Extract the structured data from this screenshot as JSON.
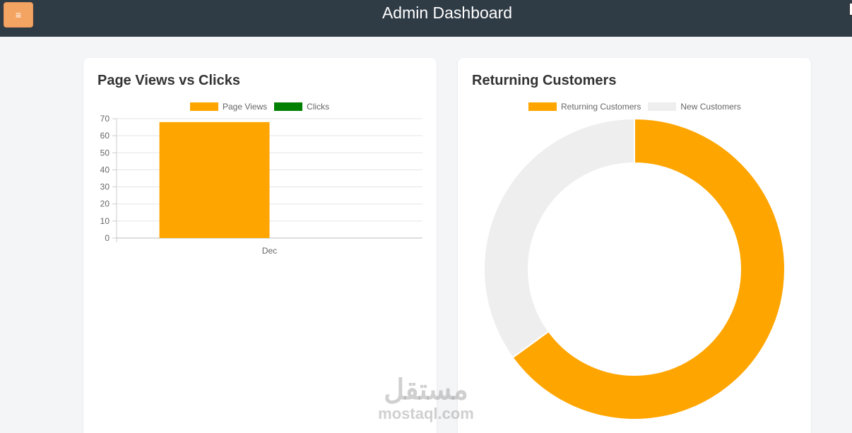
{
  "app": {
    "title": "Admin Dashboard",
    "menu_label": "≡"
  },
  "cards": {
    "views_clicks": {
      "title": "Page Views vs Clicks"
    },
    "returning": {
      "title": "Returning Customers"
    }
  },
  "chart_data": [
    {
      "type": "bar",
      "title": "Page Views vs Clicks",
      "categories": [
        "Dec"
      ],
      "series": [
        {
          "name": "Page Views",
          "values": [
            68
          ],
          "color": "#ffa500"
        },
        {
          "name": "Clicks",
          "values": [
            0
          ],
          "color": "#008000"
        }
      ],
      "ylim": [
        0,
        70
      ],
      "yticks": [
        0,
        10,
        20,
        30,
        40,
        50,
        60,
        70
      ],
      "grid": true,
      "legend": "top"
    },
    {
      "type": "pie",
      "title": "Returning Customers",
      "labels": [
        "Returning Customers",
        "New Customers"
      ],
      "values": [
        65,
        35
      ],
      "colors": [
        "#ffa500",
        "#eeeeee"
      ],
      "doughnut": true,
      "legend": "top"
    }
  ],
  "watermark": {
    "arabic": "مستقل",
    "latin": "mostaql.com"
  }
}
